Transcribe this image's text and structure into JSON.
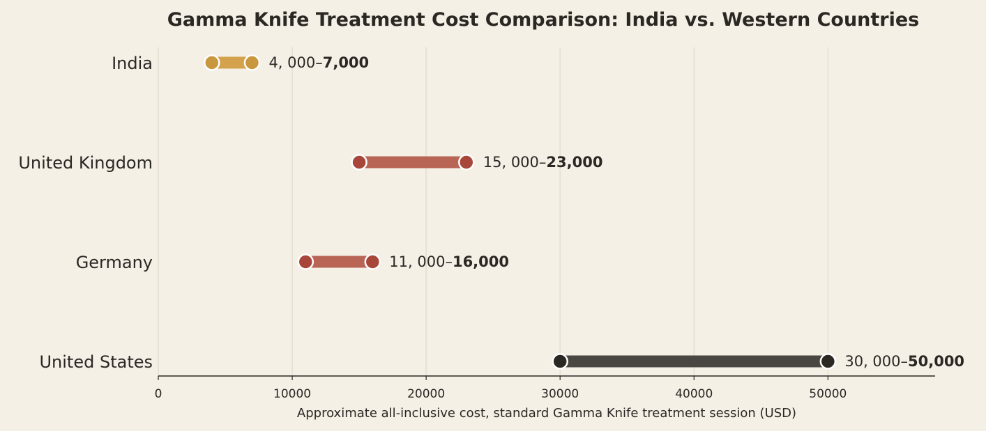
{
  "chart_data": {
    "type": "dumbbell",
    "title": "Gamma Knife Treatment Cost Comparison: India vs. Western Countries",
    "xlabel": "Approximate all-inclusive cost, standard Gamma Knife treatment session (USD)",
    "ylabel": "",
    "xlim": [
      0,
      58000
    ],
    "xticks": [
      "0",
      "10000",
      "20000",
      "30000",
      "40000",
      "50000"
    ],
    "grid": "vertical",
    "categories": [
      "India",
      "United Kingdom",
      "Germany",
      "United States"
    ],
    "series": [
      {
        "category": "India",
        "low": 4000,
        "high": 7000,
        "label_low": "4, 000–",
        "label_high": "7,000",
        "bar_color": "#d4a24c",
        "dot_color": "#c9973e"
      },
      {
        "category": "United Kingdom",
        "low": 15000,
        "high": 23000,
        "label_low": "15, 000–",
        "label_high": "23,000",
        "bar_color": "#b86556",
        "dot_color": "#a8463a"
      },
      {
        "category": "Germany",
        "low": 11000,
        "high": 16000,
        "label_low": "11, 000–",
        "label_high": "16,000",
        "bar_color": "#b86556",
        "dot_color": "#a8463a"
      },
      {
        "category": "United States",
        "low": 30000,
        "high": 50000,
        "label_low": "30, 000–",
        "label_high": "50,000",
        "bar_color": "#4a4641",
        "dot_color": "#2b2723"
      }
    ]
  }
}
